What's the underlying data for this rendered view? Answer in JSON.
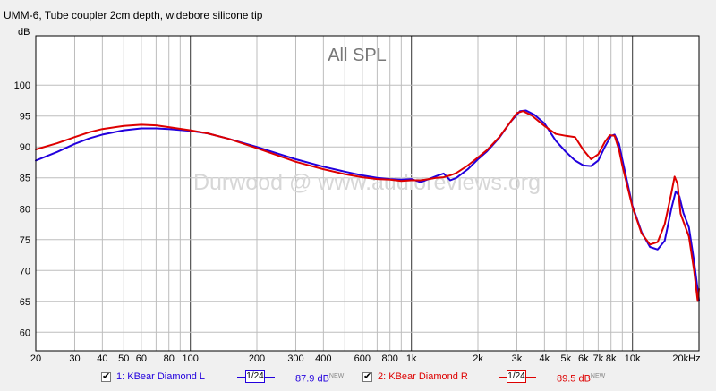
{
  "chart_data": {
    "type": "line",
    "title": "UMM-6, Tube coupler 2cm depth, widebore silicone tip",
    "plot_label": "All SPL",
    "watermark": "Durwood @ www.audioreviews.org",
    "ylabel": "dB",
    "xscale": "log",
    "xlim": [
      20,
      20000
    ],
    "ylim": [
      57,
      108
    ],
    "grid": true,
    "x_ticks": [
      {
        "v": 20,
        "label": "20"
      },
      {
        "v": 30,
        "label": "30"
      },
      {
        "v": 40,
        "label": "40"
      },
      {
        "v": 50,
        "label": "50"
      },
      {
        "v": 60,
        "label": "60"
      },
      {
        "v": 80,
        "label": "80"
      },
      {
        "v": 100,
        "label": "100"
      },
      {
        "v": 200,
        "label": "200"
      },
      {
        "v": 300,
        "label": "300"
      },
      {
        "v": 400,
        "label": "400"
      },
      {
        "v": 600,
        "label": "600"
      },
      {
        "v": 800,
        "label": "800"
      },
      {
        "v": 1000,
        "label": "1k"
      },
      {
        "v": 2000,
        "label": "2k"
      },
      {
        "v": 3000,
        "label": "3k"
      },
      {
        "v": 4000,
        "label": "4k"
      },
      {
        "v": 5000,
        "label": "5k"
      },
      {
        "v": 6000,
        "label": "6k"
      },
      {
        "v": 7000,
        "label": "7k"
      },
      {
        "v": 8000,
        "label": "8k"
      },
      {
        "v": 10000,
        "label": "10k"
      },
      {
        "v": 20000,
        "label": "20kHz"
      }
    ],
    "y_ticks": [
      60,
      65,
      70,
      75,
      80,
      85,
      90,
      95,
      100
    ],
    "series": [
      {
        "name": "1: KBear Diamond L",
        "color": "#2200dd",
        "smoothing": "1/24",
        "level": "87.9 dB",
        "level_tag": "NEW",
        "points": [
          [
            20,
            87.8
          ],
          [
            25,
            89.2
          ],
          [
            30,
            90.5
          ],
          [
            35,
            91.4
          ],
          [
            40,
            92.0
          ],
          [
            50,
            92.7
          ],
          [
            60,
            93.0
          ],
          [
            70,
            93.0
          ],
          [
            80,
            92.9
          ],
          [
            100,
            92.6
          ],
          [
            120,
            92.2
          ],
          [
            150,
            91.3
          ],
          [
            200,
            90.0
          ],
          [
            250,
            88.9
          ],
          [
            300,
            88.0
          ],
          [
            400,
            86.8
          ],
          [
            500,
            86.0
          ],
          [
            600,
            85.4
          ],
          [
            700,
            85.0
          ],
          [
            800,
            84.8
          ],
          [
            900,
            84.7
          ],
          [
            1000,
            84.8
          ],
          [
            1100,
            84.3
          ],
          [
            1200,
            84.8
          ],
          [
            1300,
            85.3
          ],
          [
            1400,
            85.7
          ],
          [
            1500,
            84.6
          ],
          [
            1600,
            85.0
          ],
          [
            1800,
            86.4
          ],
          [
            2000,
            88.0
          ],
          [
            2200,
            89.3
          ],
          [
            2500,
            91.5
          ],
          [
            2800,
            94.0
          ],
          [
            3100,
            95.8
          ],
          [
            3300,
            95.9
          ],
          [
            3600,
            95.2
          ],
          [
            4000,
            93.8
          ],
          [
            4500,
            91.0
          ],
          [
            5000,
            89.2
          ],
          [
            5500,
            87.8
          ],
          [
            6000,
            87.0
          ],
          [
            6500,
            86.9
          ],
          [
            7000,
            87.8
          ],
          [
            7500,
            90.0
          ],
          [
            8000,
            91.8
          ],
          [
            8300,
            92.0
          ],
          [
            8700,
            90.5
          ],
          [
            9000,
            88.0
          ],
          [
            10000,
            80.5
          ],
          [
            11000,
            76.2
          ],
          [
            12000,
            73.8
          ],
          [
            13000,
            73.4
          ],
          [
            14000,
            74.8
          ],
          [
            15000,
            80.0
          ],
          [
            15700,
            82.8
          ],
          [
            16300,
            82.0
          ],
          [
            17000,
            79.3
          ],
          [
            18000,
            77.0
          ],
          [
            19000,
            71.5
          ],
          [
            20000,
            65.2
          ]
        ]
      },
      {
        "name": "2: KBear Diamond R",
        "color": "#dd0000",
        "smoothing": "1/24",
        "level": "89.5 dB",
        "level_tag": "NEW",
        "points": [
          [
            20,
            89.6
          ],
          [
            25,
            90.6
          ],
          [
            30,
            91.6
          ],
          [
            35,
            92.4
          ],
          [
            40,
            92.9
          ],
          [
            50,
            93.4
          ],
          [
            60,
            93.6
          ],
          [
            70,
            93.5
          ],
          [
            80,
            93.2
          ],
          [
            100,
            92.7
          ],
          [
            120,
            92.2
          ],
          [
            150,
            91.3
          ],
          [
            200,
            89.8
          ],
          [
            250,
            88.6
          ],
          [
            300,
            87.6
          ],
          [
            400,
            86.4
          ],
          [
            500,
            85.6
          ],
          [
            600,
            85.1
          ],
          [
            700,
            84.8
          ],
          [
            800,
            84.7
          ],
          [
            900,
            84.5
          ],
          [
            1000,
            84.6
          ],
          [
            1100,
            84.6
          ],
          [
            1200,
            84.8
          ],
          [
            1300,
            85.0
          ],
          [
            1400,
            85.1
          ],
          [
            1500,
            85.4
          ],
          [
            1600,
            85.8
          ],
          [
            1800,
            87.0
          ],
          [
            2000,
            88.3
          ],
          [
            2200,
            89.5
          ],
          [
            2500,
            91.6
          ],
          [
            2800,
            94.0
          ],
          [
            3000,
            95.5
          ],
          [
            3200,
            95.8
          ],
          [
            3500,
            95.1
          ],
          [
            4000,
            93.4
          ],
          [
            4500,
            92.1
          ],
          [
            5000,
            91.8
          ],
          [
            5500,
            91.6
          ],
          [
            6000,
            89.5
          ],
          [
            6500,
            88.0
          ],
          [
            7000,
            88.8
          ],
          [
            7500,
            90.8
          ],
          [
            7900,
            91.9
          ],
          [
            8300,
            91.8
          ],
          [
            8700,
            89.5
          ],
          [
            9000,
            87.0
          ],
          [
            10000,
            80.3
          ],
          [
            11000,
            76.0
          ],
          [
            12000,
            74.2
          ],
          [
            13000,
            74.6
          ],
          [
            14000,
            77.5
          ],
          [
            15000,
            82.5
          ],
          [
            15500,
            85.2
          ],
          [
            16000,
            84.0
          ],
          [
            16500,
            79.2
          ],
          [
            17000,
            77.9
          ],
          [
            18000,
            75.5
          ],
          [
            19000,
            70.0
          ],
          [
            19700,
            65.2
          ],
          [
            20000,
            67.0
          ]
        ]
      }
    ]
  }
}
